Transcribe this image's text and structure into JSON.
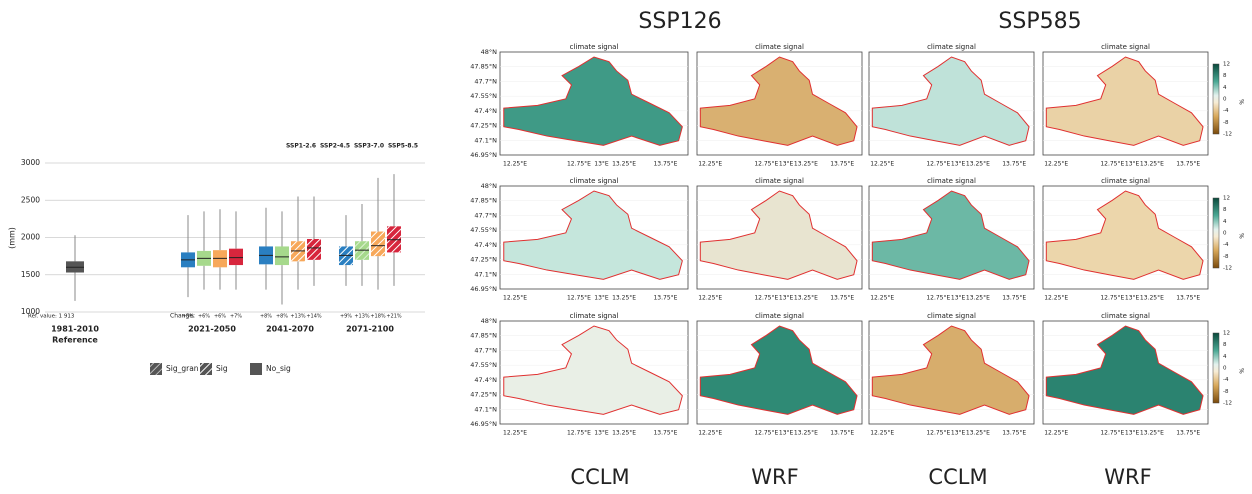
{
  "chart_data": {
    "type": "box",
    "y_label": "(mm)",
    "ylim": [
      1000,
      3000
    ],
    "yticks": [
      1000,
      1500,
      2000,
      2500,
      3000
    ],
    "grid": true,
    "reference": {
      "category": "1981-2010",
      "sublabel": "Reference",
      "color": "#555555",
      "box": [
        1150,
        1530,
        1600,
        1680,
        2030
      ],
      "value_label": "Ref. value: 1 913"
    },
    "change_label": "Change:",
    "categories": [
      "2021-2050",
      "2041-2070",
      "2071-2100"
    ],
    "series": [
      {
        "name": "SSP1-2.6",
        "color": "#2a7fc1",
        "boxes": [
          [
            1200,
            1600,
            1700,
            1800,
            2300
          ],
          [
            1300,
            1640,
            1760,
            1880,
            2400
          ],
          [
            1350,
            1630,
            1760,
            1880,
            2300
          ]
        ],
        "patterns": [
          "none",
          "none",
          "sig"
        ],
        "change_labels": [
          "+5%",
          "+8%",
          "+9%"
        ]
      },
      {
        "name": "SSP2-4.5",
        "color": "#a6d98c",
        "boxes": [
          [
            1300,
            1620,
            1720,
            1820,
            2350
          ],
          [
            1100,
            1630,
            1740,
            1880,
            2350
          ],
          [
            1350,
            1700,
            1830,
            1950,
            2450
          ]
        ],
        "patterns": [
          "none",
          "none",
          "sig_gran"
        ],
        "change_labels": [
          "+6%",
          "+8%",
          "+13%"
        ]
      },
      {
        "name": "SSP3-7.0",
        "color": "#f7a85a",
        "boxes": [
          [
            1300,
            1600,
            1720,
            1830,
            2380
          ],
          [
            1300,
            1680,
            1820,
            1950,
            2550
          ],
          [
            1300,
            1750,
            1890,
            2080,
            2800
          ]
        ],
        "patterns": [
          "none",
          "sig",
          "sig"
        ],
        "change_labels": [
          "+6%",
          "+13%",
          "+18%"
        ]
      },
      {
        "name": "SSP5-8.5",
        "color": "#d7263d",
        "boxes": [
          [
            1300,
            1630,
            1730,
            1850,
            2350
          ],
          [
            1350,
            1700,
            1860,
            1980,
            2550
          ],
          [
            1350,
            1800,
            1970,
            2150,
            2850
          ]
        ],
        "patterns": [
          "none",
          "sig",
          "sig"
        ],
        "change_labels": [
          "+7%",
          "+14%",
          "+21%"
        ]
      }
    ],
    "significance_legend": [
      {
        "label": "Sig_gran",
        "pattern": "sig_gran"
      },
      {
        "label": "Sig",
        "pattern": "sig"
      },
      {
        "label": "No_sig",
        "pattern": "none"
      }
    ]
  },
  "maps": {
    "scenarios": [
      "SSP126",
      "SSP585"
    ],
    "models": [
      "CCLM",
      "WRF",
      "CCLM",
      "WRF"
    ],
    "panel_title": "climate signal",
    "lat_ticks": [
      "48°N",
      "47.85°N",
      "47.7°N",
      "47.55°N",
      "47.4°N",
      "47.25°N",
      "47.1°N",
      "46.95°N"
    ],
    "lon_ticks": [
      "12.25°E",
      "12.75°E",
      "13°E",
      "13.25°E",
      "13.75°E"
    ],
    "colorbar": {
      "unit": "%",
      "ticks": [
        12,
        8,
        4,
        0,
        -4,
        -8,
        -12
      ]
    }
  }
}
